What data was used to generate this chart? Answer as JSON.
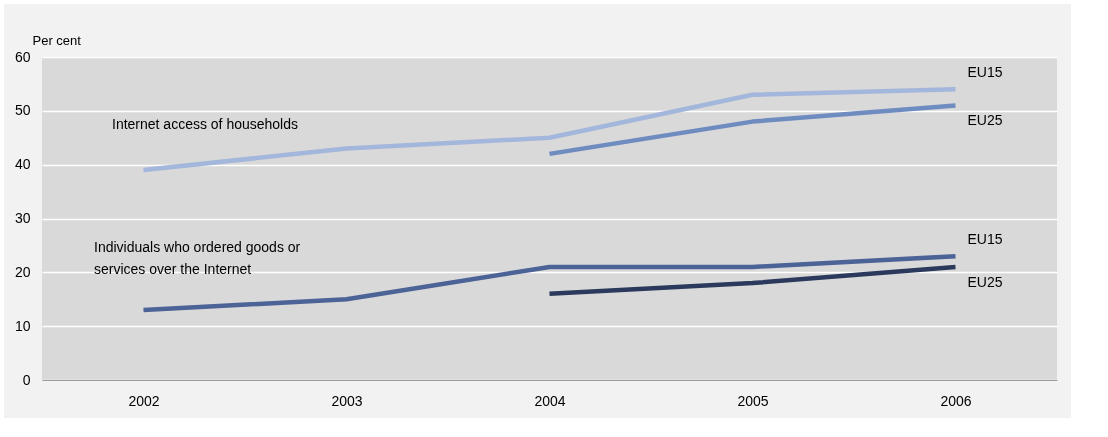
{
  "chart_data": {
    "type": "line",
    "ylabel": "Per cent",
    "categories": [
      "2002",
      "2003",
      "2004",
      "2005",
      "2006"
    ],
    "series": [
      {
        "name": "EU15",
        "color": "#a3b6db",
        "values": [
          39,
          43,
          45,
          53,
          54
        ]
      },
      {
        "name": "EU25",
        "color": "#6f8cc1",
        "values": [
          null,
          null,
          42,
          48,
          51
        ]
      },
      {
        "name": "EU15",
        "color": "#4b6396",
        "values": [
          13,
          15,
          21,
          21,
          23
        ]
      },
      {
        "name": "EU25",
        "color": "#2b3a5c",
        "values": [
          null,
          null,
          16,
          18,
          21
        ]
      }
    ],
    "annotations": [
      "Internet access of households",
      "Individuals who ordered goods or services over the Internet"
    ],
    "ylim": [
      0,
      60
    ],
    "yticks": [
      0,
      10,
      20,
      30,
      40,
      50,
      60
    ],
    "grid": "y",
    "legend": false,
    "marker": "none",
    "line_style": "solid"
  }
}
